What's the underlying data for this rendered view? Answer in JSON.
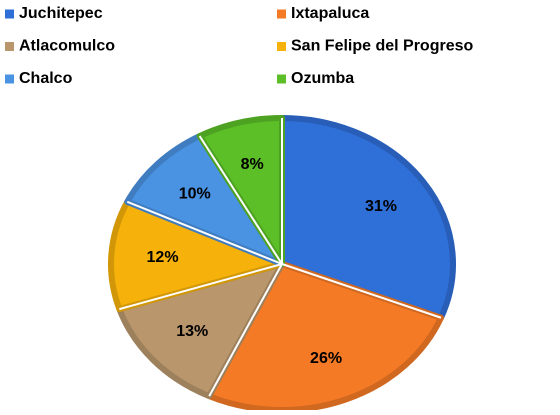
{
  "chart_data": {
    "type": "pie",
    "categories": [
      "Juchitepec",
      "Ixtapaluca",
      "Atlacomulco",
      "San Felipe del Progreso",
      "Chalco",
      "Ozumba"
    ],
    "values": [
      31,
      26,
      13,
      12,
      10,
      8
    ],
    "value_labels": [
      "31%",
      "26%",
      "13%",
      "12%",
      "10%",
      "8%"
    ],
    "colors": [
      "#2f6fd8",
      "#f57a26",
      "#b9966c",
      "#f6b20a",
      "#4a92e2",
      "#5cbf28"
    ],
    "legend": "top"
  }
}
